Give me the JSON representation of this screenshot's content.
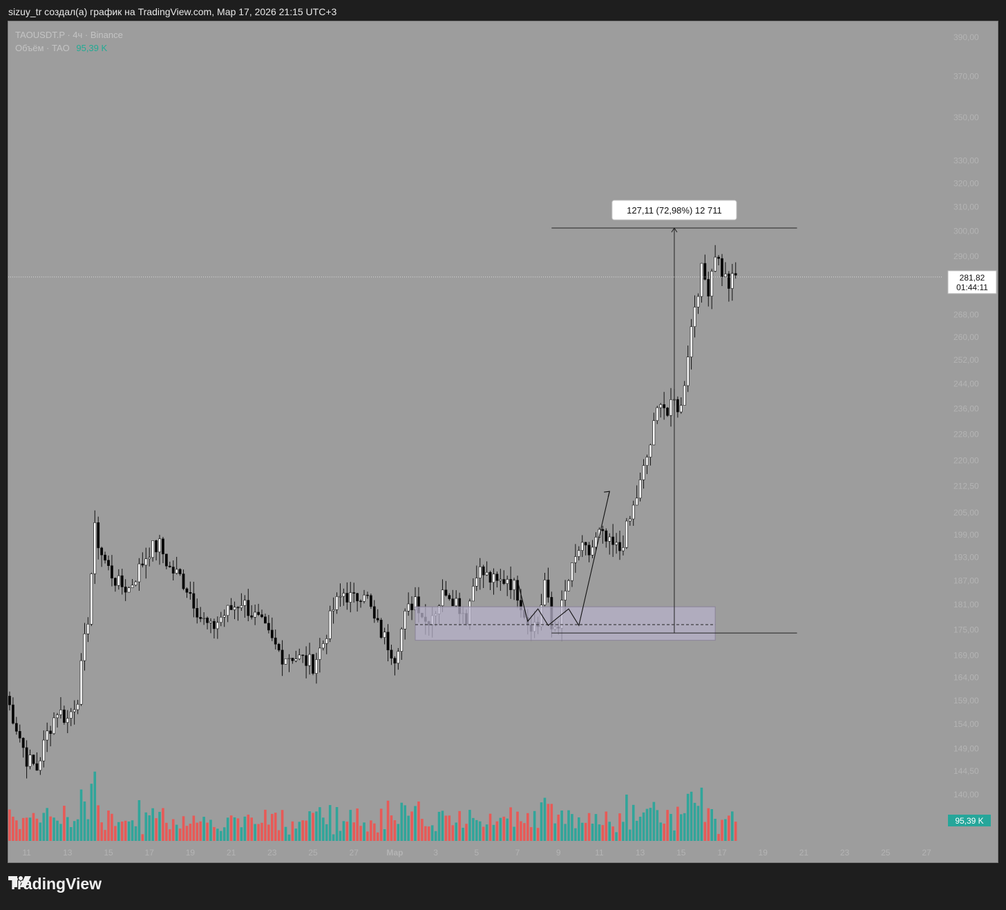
{
  "header": {
    "caption": "sizuy_tr создал(а) график на TradingView.com, Мар 17, 2026 21:15 UTC+3"
  },
  "legend": {
    "symbol_line": "TAOUSDT.P · 4ч · Binance",
    "volume_label": "Объём · TAO",
    "volume_value": "95,39 K"
  },
  "footer": {
    "brand": "TradingView",
    "logo_icon": "tradingview-logo-icon"
  },
  "colors": {
    "background": "#9d9d9d",
    "frame": "#1e1e1e",
    "up_candle": "#ffffff",
    "down_candle": "#000000",
    "volume_up": "#26a69a",
    "volume_down": "#ef5350",
    "zone_fill": "#b7b1c9",
    "axis_text": "#b4b4b4",
    "volume_badge": "#26a69a"
  },
  "chart_data": {
    "type": "candlestick",
    "title": "TAOUSDT.P · 4ч · Binance",
    "y_scale": "log",
    "ylim": [
      135,
      400
    ],
    "x_range": [
      "2026-02-10",
      "2026-03-28"
    ],
    "y_ticks": [
      "390,00",
      "370,00",
      "350,00",
      "330,00",
      "320,00",
      "310,00",
      "300,00",
      "290,00",
      "268,00",
      "260,00",
      "252,00",
      "244,00",
      "236,00",
      "228,00",
      "220,00",
      "212,50",
      "205,00",
      "199,00",
      "193,00",
      "187,00",
      "181,00",
      "175,00",
      "169,00",
      "164,00",
      "159,00",
      "154,00",
      "149,00",
      "144,50",
      "140,00"
    ],
    "x_ticks": [
      {
        "date": "2026-02-11",
        "label": "11"
      },
      {
        "date": "2026-02-13",
        "label": "13"
      },
      {
        "date": "2026-02-15",
        "label": "15"
      },
      {
        "date": "2026-02-17",
        "label": "17"
      },
      {
        "date": "2026-02-19",
        "label": "19"
      },
      {
        "date": "2026-02-21",
        "label": "21"
      },
      {
        "date": "2026-02-23",
        "label": "23"
      },
      {
        "date": "2026-02-25",
        "label": "25"
      },
      {
        "date": "2026-02-27",
        "label": "27"
      },
      {
        "date": "2026-03-01",
        "label": "Мар"
      },
      {
        "date": "2026-03-03",
        "label": "3"
      },
      {
        "date": "2026-03-05",
        "label": "5"
      },
      {
        "date": "2026-03-07",
        "label": "7"
      },
      {
        "date": "2026-03-09",
        "label": "9"
      },
      {
        "date": "2026-03-11",
        "label": "11"
      },
      {
        "date": "2026-03-13",
        "label": "13"
      },
      {
        "date": "2026-03-15",
        "label": "15"
      },
      {
        "date": "2026-03-17",
        "label": "17"
      },
      {
        "date": "2026-03-19",
        "label": "19"
      },
      {
        "date": "2026-03-21",
        "label": "21"
      },
      {
        "date": "2026-03-23",
        "label": "23"
      },
      {
        "date": "2026-03-25",
        "label": "25"
      },
      {
        "date": "2026-03-27",
        "label": "27"
      }
    ],
    "price_path": [
      [
        "2026-02-10",
        160
      ],
      [
        "2026-02-11",
        147
      ],
      [
        "2026-02-11T12",
        145
      ],
      [
        "2026-02-12",
        152
      ],
      [
        "2026-02-12T12",
        157
      ],
      [
        "2026-02-13",
        155
      ],
      [
        "2026-02-13T12",
        160
      ],
      [
        "2026-02-14",
        178
      ],
      [
        "2026-02-14T08",
        200
      ],
      [
        "2026-02-14T16",
        194
      ],
      [
        "2026-02-15",
        190
      ],
      [
        "2026-02-15T12",
        186
      ],
      [
        "2026-02-16",
        185
      ],
      [
        "2026-02-16T12",
        190
      ],
      [
        "2026-02-17",
        195
      ],
      [
        "2026-02-17T12",
        196
      ],
      [
        "2026-02-18",
        190
      ],
      [
        "2026-02-18T12",
        188
      ],
      [
        "2026-02-19",
        184
      ],
      [
        "2026-02-19T12",
        178
      ],
      [
        "2026-02-20",
        175
      ],
      [
        "2026-02-20T12",
        178
      ],
      [
        "2026-02-21",
        180
      ],
      [
        "2026-02-21T12",
        182
      ],
      [
        "2026-02-22",
        179
      ],
      [
        "2026-02-22T12",
        176
      ],
      [
        "2026-02-23",
        172
      ],
      [
        "2026-02-23T12",
        169
      ],
      [
        "2026-02-24",
        169
      ],
      [
        "2026-02-24T12",
        168
      ],
      [
        "2026-02-25",
        167
      ],
      [
        "2026-02-25T12",
        172
      ],
      [
        "2026-02-26",
        180
      ],
      [
        "2026-02-26T12",
        184
      ],
      [
        "2026-02-27",
        182
      ],
      [
        "2026-02-27T12",
        185
      ],
      [
        "2026-02-28",
        177
      ],
      [
        "2026-02-28T12",
        173
      ],
      [
        "2026-03-01",
        169
      ],
      [
        "2026-03-01T12",
        178
      ],
      [
        "2026-03-02",
        183
      ],
      [
        "2026-03-02T12",
        177
      ],
      [
        "2026-03-03",
        180
      ],
      [
        "2026-03-03T12",
        185
      ],
      [
        "2026-03-04",
        182
      ],
      [
        "2026-03-04T12",
        178
      ],
      [
        "2026-03-05",
        190
      ],
      [
        "2026-03-05T12",
        188
      ],
      [
        "2026-03-06",
        186
      ],
      [
        "2026-03-06T12",
        188
      ],
      [
        "2026-03-07",
        184
      ],
      [
        "2026-03-07T12",
        177
      ],
      [
        "2026-03-08",
        176
      ],
      [
        "2026-03-08T08",
        187
      ],
      [
        "2026-03-08T16",
        175
      ],
      [
        "2026-03-09",
        177
      ],
      [
        "2026-03-09T12",
        187
      ],
      [
        "2026-03-10",
        195
      ],
      [
        "2026-03-10T12",
        194
      ],
      [
        "2026-03-11",
        199
      ],
      [
        "2026-03-11T12",
        196
      ],
      [
        "2026-03-12",
        195
      ],
      [
        "2026-03-12T12",
        203
      ],
      [
        "2026-03-13",
        213
      ],
      [
        "2026-03-13T12",
        225
      ],
      [
        "2026-03-14",
        240
      ],
      [
        "2026-03-14T08",
        234
      ],
      [
        "2026-03-14T16",
        238
      ],
      [
        "2026-03-15",
        236
      ],
      [
        "2026-03-15T08",
        255
      ],
      [
        "2026-03-15T16",
        272
      ],
      [
        "2026-03-16",
        284
      ],
      [
        "2026-03-16T08",
        278
      ],
      [
        "2026-03-16T16",
        292
      ],
      [
        "2026-03-17",
        284
      ],
      [
        "2026-03-17T08",
        279
      ],
      [
        "2026-03-17T16",
        282
      ]
    ],
    "volume": {
      "name": "Объём · TAO",
      "last": "95,39 K"
    },
    "last_price": "281,82",
    "countdown": "01:44:11",
    "measure_label": "127,11 (72,98%) 12 711",
    "measure": {
      "from": 174.2,
      "to": 301.3,
      "date": "2026-03-14T16"
    },
    "zone": {
      "from_date": "2026-03-02",
      "to_date": "2026-03-16T16",
      "low": 172.5,
      "high": 180.5,
      "mid": 176.2
    },
    "projection_path": [
      [
        "2026-03-07",
        187
      ],
      [
        "2026-03-07T12",
        177
      ],
      [
        "2026-03-08",
        180
      ],
      [
        "2026-03-08T12",
        176
      ],
      [
        "2026-03-09",
        178
      ],
      [
        "2026-03-09T12",
        180
      ],
      [
        "2026-03-10",
        176
      ],
      [
        "2026-03-11T12",
        211
      ]
    ]
  }
}
